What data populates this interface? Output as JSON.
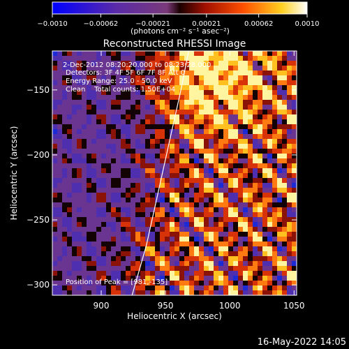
{
  "chart_data": {
    "type": "heatmap",
    "title": "Reconstructed RHESSI Image",
    "xlabel": "Heliocentric X (arcsec)",
    "ylabel": "Heliocentric Y (arcsec)",
    "xlim": [
      862,
      1052
    ],
    "ylim": [
      -308,
      -120
    ],
    "xticks": [
      900,
      950,
      1000,
      1050
    ],
    "yticks": [
      -150,
      -200,
      -250,
      -300
    ],
    "colorbar": {
      "min": -0.001,
      "max": 0.001,
      "colormap": "blue-purple-red-yellow-white",
      "tick_values": [
        -0.001,
        -0.00062,
        -0.00021,
        0.00021,
        0.00062,
        0.001
      ],
      "tick_labels": [
        "-0.0010",
        "-0.00062",
        "-0.00021",
        "0.00021",
        "0.00062",
        "0.0010"
      ],
      "unit_label": "(photons cm⁻² s⁻¹ asec⁻²)"
    },
    "annotations": [
      "2-Dec-2012 08:20:20.000 to 08:23:28.000",
      "Detectors: 3F 4F 5F 6F 7F 8F Att 0",
      "Energy Range: 25.0 - 50.0 keV",
      "Clean    Total counts: 1.50E+04"
    ],
    "peak_text": "Position of Peak = [981,-135]",
    "peak": [
      981,
      -135
    ],
    "limb_curve": [
      [
        924,
        -308
      ],
      [
        935,
        -270
      ],
      [
        944,
        -230
      ],
      [
        953,
        -190
      ],
      [
        962,
        -150
      ],
      [
        968,
        -120
      ]
    ],
    "grid": false
  },
  "footer": {
    "timestamp": "16-May-2022 14:05"
  },
  "colors": {
    "background": "#000000",
    "text": "#ffffff",
    "limb": "#ffffff"
  }
}
